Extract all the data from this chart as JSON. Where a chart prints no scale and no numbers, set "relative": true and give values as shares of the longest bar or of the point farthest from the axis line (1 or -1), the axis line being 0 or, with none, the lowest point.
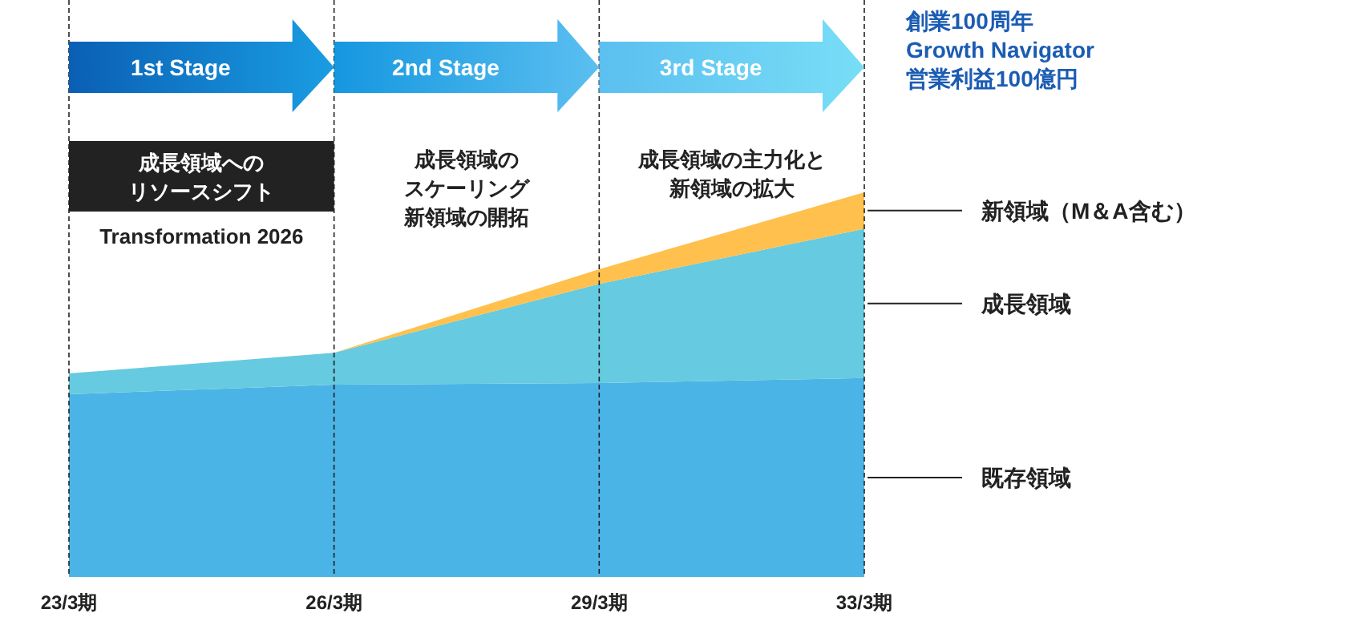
{
  "chart_data": {
    "type": "area",
    "stacked": true,
    "relative": true,
    "grid": "x",
    "categories": [
      "23/3期",
      "26/3期",
      "29/3期",
      "33/3期"
    ],
    "series": [
      {
        "name": "既存領域",
        "color": "#4bb4e6",
        "values": [
          0.475,
          0.5,
          0.504,
          0.517
        ]
      },
      {
        "name": "成長領域",
        "color": "#66cae0",
        "values": [
          0.054,
          0.083,
          0.258,
          0.388
        ]
      },
      {
        "name": "新領域（M＆A含む）",
        "color": "#ffc04d",
        "values": [
          0,
          0,
          0.038,
          0.095
        ]
      }
    ],
    "annotations": [
      "1st Stage",
      "2nd Stage",
      "3rd Stage",
      "成長領域への",
      "リソースシフト",
      "Transformation 2026",
      "成長領域の",
      "スケーリング",
      "新領域の開拓",
      "成長領域の主力化と",
      "新領域の拡大",
      "創業100周年",
      "Growth Navigator",
      "営業利益100億円"
    ]
  }
}
